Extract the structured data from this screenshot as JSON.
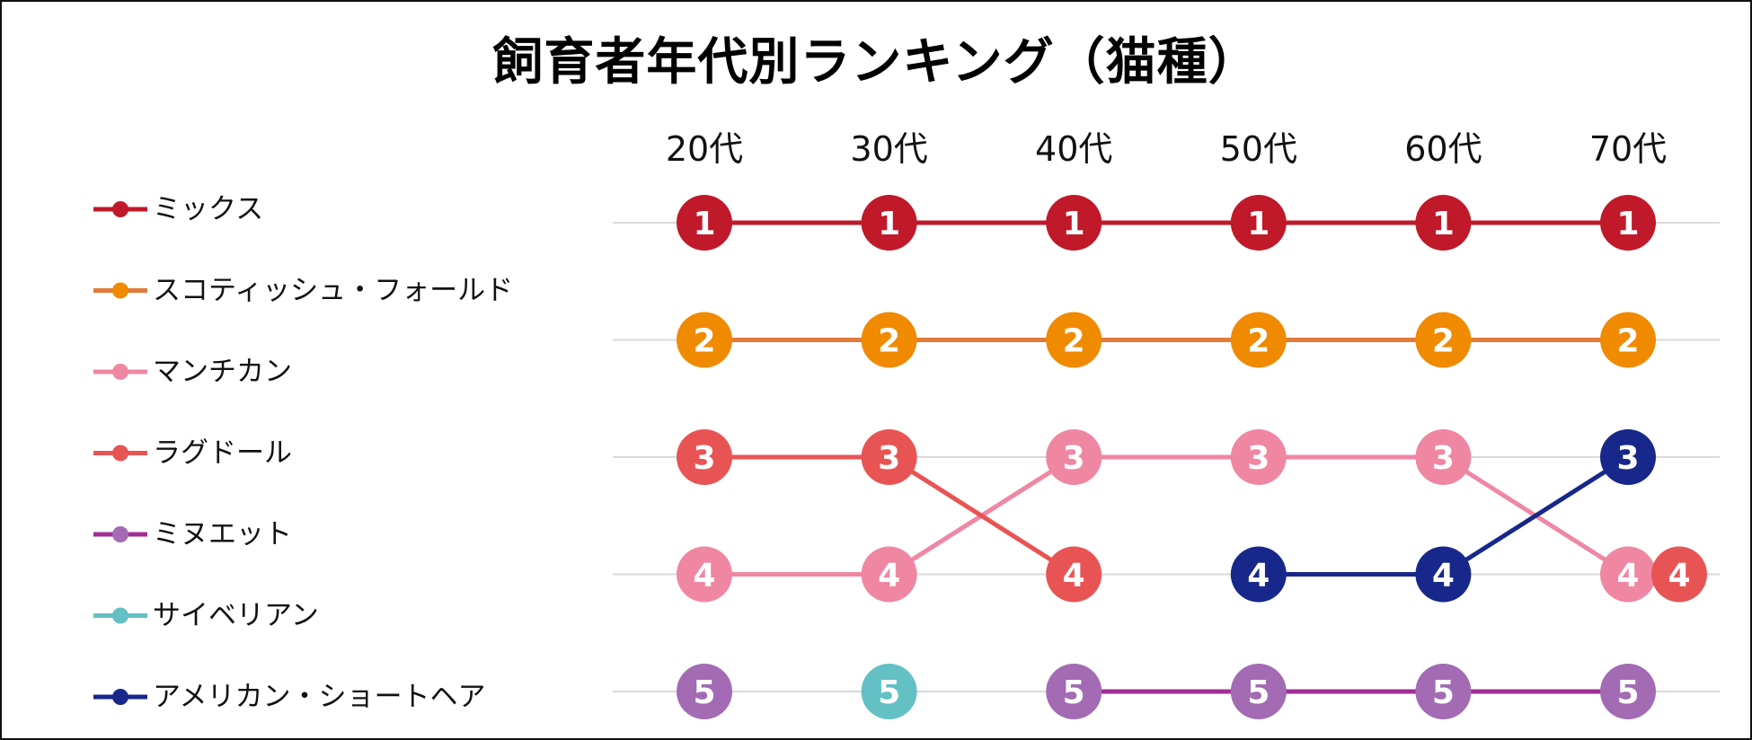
{
  "chart_data": {
    "type": "bump",
    "title": "飼育者年代別ランキング（猫種）",
    "categories": [
      "20代",
      "30代",
      "40代",
      "50代",
      "60代",
      "70代"
    ],
    "ranks": [
      1,
      2,
      3,
      4,
      5
    ],
    "series": [
      {
        "name": "ミックス",
        "color": "#c0192a",
        "lineColor": "#c0192a",
        "ranks": [
          1,
          1,
          1,
          1,
          1,
          1
        ]
      },
      {
        "name": "スコティッシュ・フォールド",
        "color": "#f08a00",
        "lineColor": "#e07b39",
        "ranks": [
          2,
          2,
          2,
          2,
          2,
          2
        ]
      },
      {
        "name": "マンチカン",
        "color": "#ef87a3",
        "lineColor": "#ef87a3",
        "ranks": [
          4,
          4,
          3,
          3,
          3,
          4
        ]
      },
      {
        "name": "ラグドール",
        "color": "#e85454",
        "lineColor": "#e85454",
        "ranks": [
          3,
          3,
          4,
          null,
          null,
          4
        ]
      },
      {
        "name": "ミヌエット",
        "color": "#a26bb3",
        "lineColor": "#a02e96",
        "ranks": [
          5,
          null,
          5,
          5,
          5,
          5
        ]
      },
      {
        "name": "サイベリアン",
        "color": "#63c0c4",
        "lineColor": "#63c0c4",
        "ranks": [
          null,
          5,
          null,
          null,
          null,
          null
        ]
      },
      {
        "name": "アメリカン・ショートヘア",
        "color": "#17278a",
        "lineColor": "#17278a",
        "ranks": [
          null,
          null,
          null,
          4,
          4,
          3
        ]
      }
    ],
    "legend_position": "left",
    "grid": true
  }
}
